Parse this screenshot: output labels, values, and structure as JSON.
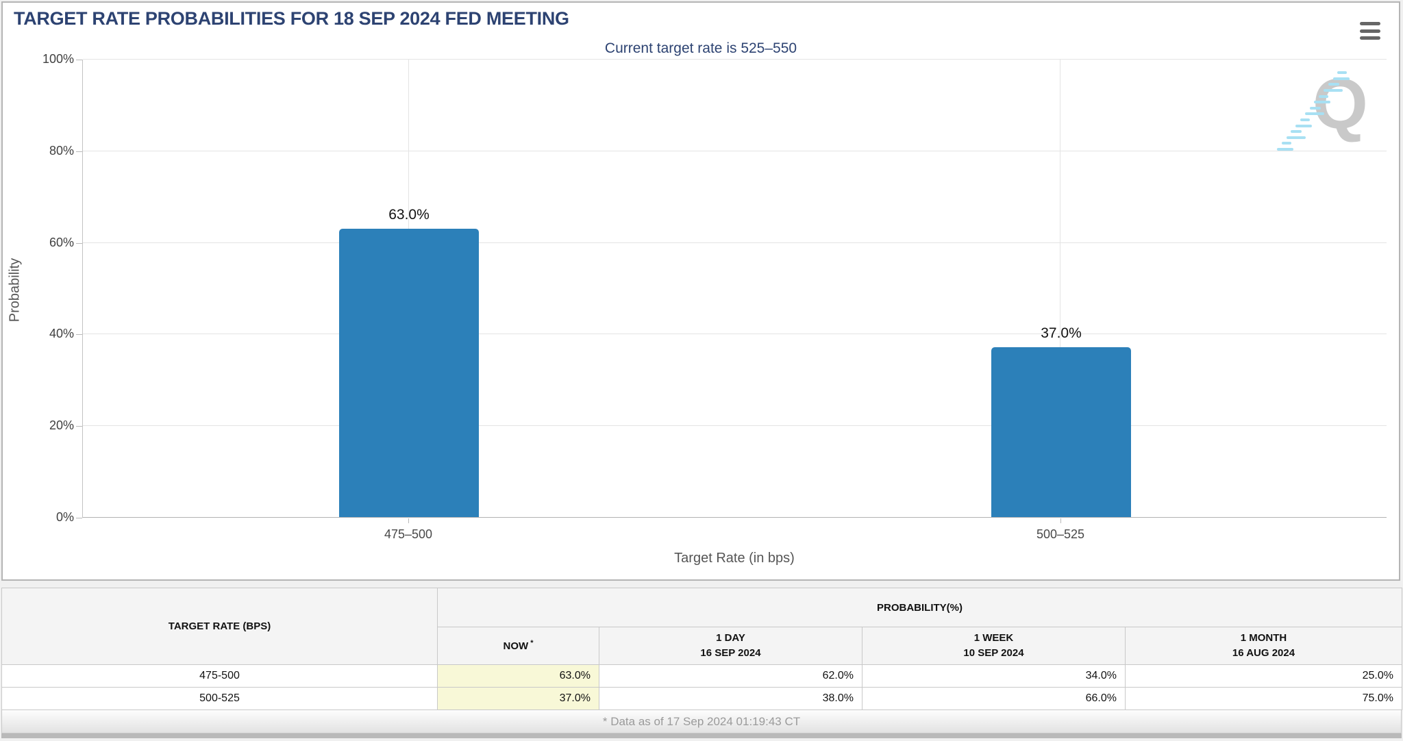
{
  "header": {
    "title": "TARGET RATE PROBABILITIES FOR 18 SEP 2024 FED MEETING"
  },
  "chart_data": {
    "type": "bar",
    "title": "Current target rate is 525–550",
    "categories": [
      "475–500",
      "500–525"
    ],
    "values": [
      63.0,
      37.0
    ],
    "value_labels": [
      "63.0%",
      "37.0%"
    ],
    "xlabel": "Target Rate (in bps)",
    "ylabel": "Probability",
    "ylim": [
      0,
      100
    ],
    "yticks": [
      "0%",
      "20%",
      "40%",
      "60%",
      "80%",
      "100%"
    ],
    "bar_positions_pct": [
      25,
      75
    ],
    "grid": true,
    "legend": false,
    "watermark": "Q",
    "colors": {
      "bar": "#2c80b9",
      "title_text": "#2d4372",
      "grid": "#e4e4e4",
      "axis": "#b9b9b9"
    }
  },
  "table": {
    "row_header": "TARGET RATE (BPS)",
    "group_header": "PROBABILITY(%)",
    "now": {
      "label": "NOW",
      "sup": "*"
    },
    "history_columns": [
      {
        "label": "1 DAY",
        "date": "16 SEP 2024"
      },
      {
        "label": "1 WEEK",
        "date": "10 SEP 2024"
      },
      {
        "label": "1 MONTH",
        "date": "16 AUG 2024"
      }
    ],
    "rows": [
      {
        "target_rate": "475-500",
        "now": "63.0%",
        "one_day": "62.0%",
        "one_week": "34.0%",
        "one_month": "25.0%"
      },
      {
        "target_rate": "500-525",
        "now": "37.0%",
        "one_day": "38.0%",
        "one_week": "66.0%",
        "one_month": "75.0%"
      }
    ],
    "highlight_color": "#f8f8d7"
  },
  "footer": {
    "note": "* Data as of 17 Sep 2024 01:19:43 CT"
  }
}
